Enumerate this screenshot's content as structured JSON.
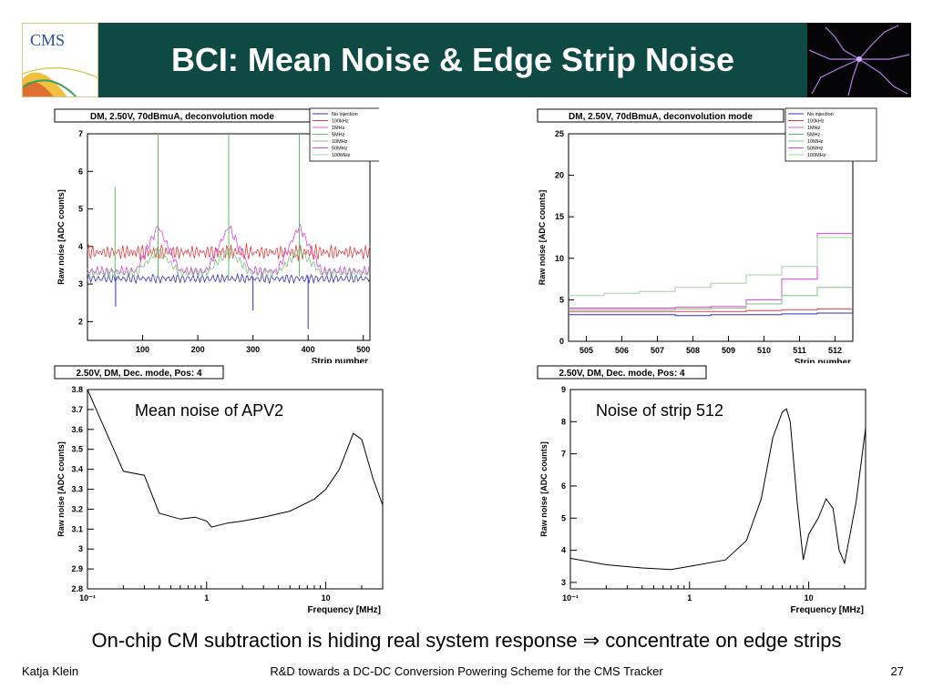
{
  "slide": {
    "title": "BCI: Mean Noise & Edge Strip Noise",
    "logo_text": "CMS",
    "bottom_text": "On-chip CM subtraction is hiding real system response ⇒ concentrate on edge strips",
    "footer_left": "Katja Klein",
    "footer_center": "R&D towards a DC-DC Conversion Powering Scheme for the CMS Tracker",
    "footer_right": "27"
  },
  "chart_data": [
    {
      "type": "line",
      "title": "DM, 2.50V, 70dBmuA, deconvolution mode",
      "xlabel": "Strip number",
      "ylabel": "Raw noise [ADC counts]",
      "xlim": [
        0,
        512
      ],
      "ylim": [
        1.5,
        7
      ],
      "x_ticks": [
        "100",
        "200",
        "300",
        "400",
        "500"
      ],
      "y_ticks": [
        "2",
        "3",
        "4",
        "5",
        "6",
        "7"
      ],
      "legend": [
        "No injection",
        "100kHz",
        "1MHz",
        "5MHz",
        "10MHz",
        "50MHz",
        "100MHz"
      ],
      "legend_colors": [
        "#3030c0",
        "#e04040",
        "#d060d0",
        "#60c060",
        "#80c080",
        "#e040e0",
        "#a0d0a0"
      ],
      "series": [
        {
          "name": "No injection",
          "color": "#3030c0",
          "base": 3.1
        },
        {
          "name": "100kHz",
          "color": "#e04040",
          "base": 3.8
        },
        {
          "name": "50MHz",
          "color": "#e040e0",
          "base": 3.3
        },
        {
          "name": "10MHz",
          "color": "#80c080",
          "base": 3.25
        }
      ]
    },
    {
      "type": "line",
      "title": "DM, 2.50V, 70dBmuA, deconvolution mode",
      "xlabel": "Strip number",
      "ylabel": "Raw noise [ADC counts]",
      "xlim": [
        504.5,
        512.5
      ],
      "ylim": [
        0,
        25
      ],
      "x_ticks": [
        "505",
        "506",
        "507",
        "508",
        "509",
        "510",
        "511",
        "512"
      ],
      "y_ticks": [
        "0",
        "5",
        "10",
        "15",
        "20",
        "25"
      ],
      "legend": [
        "No injection",
        "100kHz",
        "1MHz",
        "5MHz",
        "10MHz",
        "50MHz",
        "100MHz"
      ],
      "legend_colors": [
        "#3030c0",
        "#e04040",
        "#d060d0",
        "#60c060",
        "#80c080",
        "#e040e0",
        "#a0d0a0"
      ],
      "series": [
        {
          "name": "No injection",
          "color": "#3030c0",
          "values": [
            3.2,
            3.2,
            3.2,
            3.1,
            3.2,
            3.2,
            3.3,
            3.4
          ]
        },
        {
          "name": "100kHz",
          "color": "#e04040",
          "values": [
            3.6,
            3.6,
            3.6,
            3.6,
            3.6,
            3.7,
            3.8,
            3.9
          ]
        },
        {
          "name": "50MHz",
          "color": "#e040e0",
          "values": [
            4.0,
            4.0,
            4.0,
            4.1,
            4.2,
            5.0,
            7.5,
            13.0
          ]
        },
        {
          "name": "10MHz",
          "color": "#80c080",
          "values": [
            3.8,
            3.8,
            3.8,
            3.9,
            4.0,
            4.5,
            5.5,
            6.5
          ]
        },
        {
          "name": "100MHz",
          "color": "#a0d0a0",
          "values": [
            5.5,
            5.8,
            6.0,
            6.5,
            7.0,
            8.0,
            9.0,
            12.5
          ]
        }
      ]
    },
    {
      "type": "line",
      "title": "2.50V, DM, Dec. mode, Pos: 4",
      "annotation": "Mean noise of APV2",
      "xlabel": "Frequency [MHz]",
      "ylabel": "Raw noise [ADC counts]",
      "xscale": "log",
      "xlim": [
        0.1,
        30
      ],
      "ylim": [
        2.8,
        3.8
      ],
      "x_ticks": [
        "10⁻¹",
        "1",
        "10"
      ],
      "y_ticks": [
        "2.8",
        "2.9",
        "3",
        "3.1",
        "3.2",
        "3.3",
        "3.4",
        "3.5",
        "3.6",
        "3.7",
        "3.8"
      ],
      "x": [
        0.1,
        0.2,
        0.3,
        0.4,
        0.6,
        0.8,
        1.0,
        1.1,
        1.5,
        2,
        3,
        5,
        8,
        10,
        13,
        17,
        20,
        25,
        30
      ],
      "y": [
        3.8,
        3.39,
        3.37,
        3.18,
        3.15,
        3.16,
        3.14,
        3.11,
        3.13,
        3.14,
        3.16,
        3.19,
        3.25,
        3.3,
        3.4,
        3.58,
        3.55,
        3.35,
        3.22
      ]
    },
    {
      "type": "line",
      "title": "2.50V, DM, Dec. mode, Pos: 4",
      "annotation": "Noise of strip 512",
      "xlabel": "Frequency [MHz]",
      "ylabel": "Raw noise [ADC counts]",
      "xscale": "log",
      "xlim": [
        0.1,
        30
      ],
      "ylim": [
        2.8,
        9
      ],
      "x_ticks": [
        "10⁻¹",
        "1",
        "10"
      ],
      "y_ticks": [
        "3",
        "4",
        "5",
        "6",
        "7",
        "8",
        "9"
      ],
      "x": [
        0.1,
        0.2,
        0.4,
        0.7,
        1.0,
        2,
        3,
        4,
        5,
        6,
        6.5,
        7,
        8,
        9,
        10,
        12,
        14,
        16,
        18,
        20,
        25,
        30
      ],
      "y": [
        3.75,
        3.55,
        3.45,
        3.4,
        3.5,
        3.7,
        4.3,
        5.6,
        7.5,
        8.3,
        8.4,
        8.0,
        5.5,
        3.7,
        4.5,
        5.0,
        5.6,
        5.3,
        4.0,
        3.6,
        5.5,
        7.8
      ]
    }
  ]
}
